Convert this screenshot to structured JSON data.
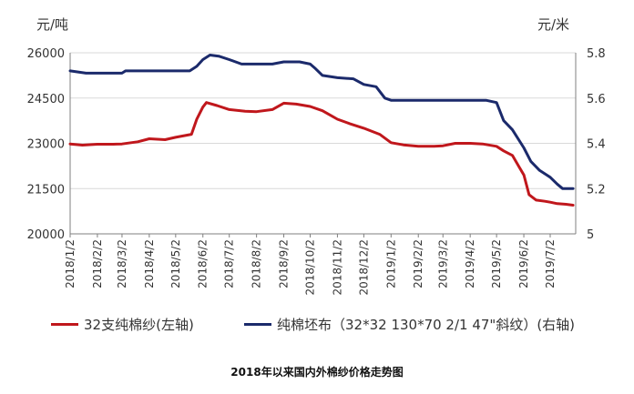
{
  "chart_data": {
    "type": "line",
    "title": "",
    "caption": "2018年以来国内外棉纱价格走势图",
    "y_left": {
      "unit": "元/吨",
      "ylim": [
        20000,
        26000
      ],
      "ticks": [
        "20000",
        "21500",
        "23000",
        "24500",
        "26000"
      ]
    },
    "y_right": {
      "unit": "元/米",
      "ylim": [
        5.0,
        5.8
      ],
      "ticks": [
        "5",
        "5.2",
        "5.4",
        "5.6",
        "5.8"
      ]
    },
    "categories": [
      "2018/1/2",
      "2018/2/2",
      "2018/3/2",
      "2018/4/2",
      "2018/5/2",
      "2018/6/2",
      "2018/7/2",
      "2018/8/2",
      "2018/9/2",
      "2018/10/2",
      "2018/11/2",
      "2018/12/2",
      "2019/1/2",
      "2019/2/2",
      "2019/3/2",
      "2019/4/2",
      "2019/5/2",
      "2019/6/2",
      "2019/7/2"
    ],
    "grid": "horizontal",
    "legend_position": "bottom",
    "series": [
      {
        "name": "32支纯棉纱(左轴)",
        "axis": "left",
        "color": "#c0171c",
        "points": [
          [
            "2018/1/2",
            22980
          ],
          [
            "2018/1/16",
            22940
          ],
          [
            "2018/2/2",
            22970
          ],
          [
            "2018/2/20",
            22970
          ],
          [
            "2018/3/2",
            22980
          ],
          [
            "2018/3/20",
            23050
          ],
          [
            "2018/4/2",
            23150
          ],
          [
            "2018/4/20",
            23120
          ],
          [
            "2018/5/2",
            23200
          ],
          [
            "2018/5/20",
            23300
          ],
          [
            "2018/5/26",
            23800
          ],
          [
            "2018/6/2",
            24200
          ],
          [
            "2018/6/6",
            24350
          ],
          [
            "2018/6/18",
            24250
          ],
          [
            "2018/7/2",
            24120
          ],
          [
            "2018/7/20",
            24060
          ],
          [
            "2018/8/2",
            24050
          ],
          [
            "2018/8/20",
            24120
          ],
          [
            "2018/9/2",
            24330
          ],
          [
            "2018/9/16",
            24300
          ],
          [
            "2018/10/2",
            24220
          ],
          [
            "2018/10/16",
            24080
          ],
          [
            "2018/11/2",
            23800
          ],
          [
            "2018/11/16",
            23650
          ],
          [
            "2018/12/2",
            23500
          ],
          [
            "2018/12/20",
            23300
          ],
          [
            "2019/1/2",
            23020
          ],
          [
            "2019/1/16",
            22950
          ],
          [
            "2019/2/2",
            22900
          ],
          [
            "2019/2/20",
            22900
          ],
          [
            "2019/3/2",
            22920
          ],
          [
            "2019/3/16",
            23000
          ],
          [
            "2019/4/2",
            23000
          ],
          [
            "2019/4/16",
            22980
          ],
          [
            "2019/5/2",
            22900
          ],
          [
            "2019/5/10",
            22750
          ],
          [
            "2019/5/20",
            22600
          ],
          [
            "2019/5/28",
            22200
          ],
          [
            "2019/6/2",
            21950
          ],
          [
            "2019/6/8",
            21300
          ],
          [
            "2019/6/16",
            21120
          ],
          [
            "2019/6/26",
            21080
          ],
          [
            "2019/7/2",
            21050
          ],
          [
            "2019/7/10",
            21000
          ],
          [
            "2019/7/20",
            20980
          ],
          [
            "2019/7/28",
            20950
          ]
        ]
      },
      {
        "name": "纯棉坯布（32*32 130*70 2/1 47\"斜纹）(右轴)",
        "axis": "right",
        "color": "#1b2a6b",
        "points": [
          [
            "2018/1/2",
            5.72
          ],
          [
            "2018/1/20",
            5.71
          ],
          [
            "2018/2/2",
            5.71
          ],
          [
            "2018/3/2",
            5.71
          ],
          [
            "2018/3/6",
            5.72
          ],
          [
            "2018/4/2",
            5.72
          ],
          [
            "2018/5/2",
            5.72
          ],
          [
            "2018/5/18",
            5.72
          ],
          [
            "2018/5/26",
            5.74
          ],
          [
            "2018/6/2",
            5.77
          ],
          [
            "2018/6/10",
            5.79
          ],
          [
            "2018/6/20",
            5.785
          ],
          [
            "2018/7/2",
            5.77
          ],
          [
            "2018/7/16",
            5.75
          ],
          [
            "2018/8/2",
            5.75
          ],
          [
            "2018/8/20",
            5.75
          ],
          [
            "2018/9/2",
            5.76
          ],
          [
            "2018/9/20",
            5.76
          ],
          [
            "2018/10/2",
            5.75
          ],
          [
            "2018/10/8",
            5.73
          ],
          [
            "2018/10/16",
            5.7
          ],
          [
            "2018/11/2",
            5.69
          ],
          [
            "2018/11/20",
            5.685
          ],
          [
            "2018/12/2",
            5.66
          ],
          [
            "2018/12/16",
            5.65
          ],
          [
            "2018/12/26",
            5.6
          ],
          [
            "2019/1/2",
            5.59
          ],
          [
            "2019/1/16",
            5.59
          ],
          [
            "2019/2/2",
            5.59
          ],
          [
            "2019/3/2",
            5.59
          ],
          [
            "2019/4/2",
            5.59
          ],
          [
            "2019/4/20",
            5.59
          ],
          [
            "2019/5/2",
            5.58
          ],
          [
            "2019/5/10",
            5.5
          ],
          [
            "2019/5/20",
            5.46
          ],
          [
            "2019/6/2",
            5.38
          ],
          [
            "2019/6/10",
            5.32
          ],
          [
            "2019/6/20",
            5.28
          ],
          [
            "2019/6/28",
            5.26
          ],
          [
            "2019/7/2",
            5.25
          ],
          [
            "2019/7/10",
            5.22
          ],
          [
            "2019/7/16",
            5.2
          ],
          [
            "2019/7/28",
            5.2
          ]
        ]
      }
    ]
  }
}
